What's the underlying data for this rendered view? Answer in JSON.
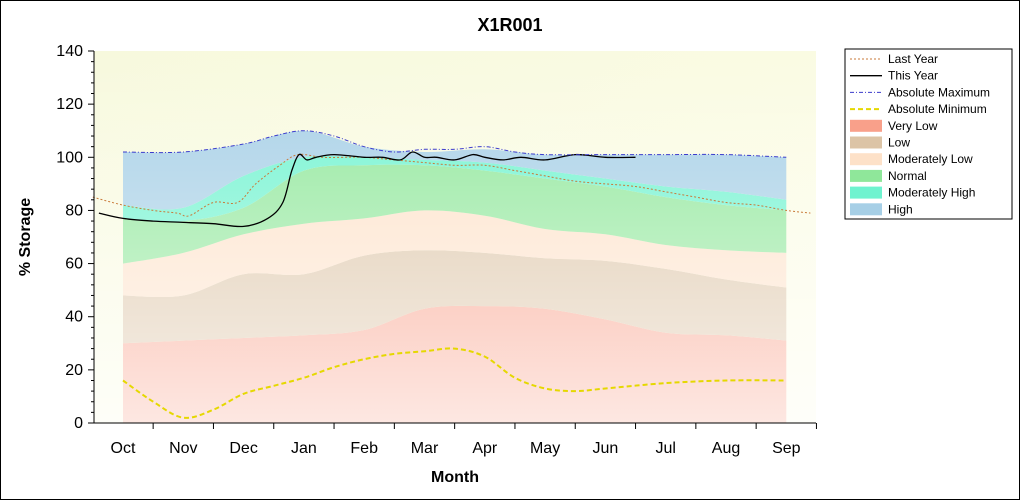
{
  "chart_data": {
    "type": "area",
    "title": "X1R001",
    "xlabel": "Month",
    "ylabel": "% Storage",
    "ylim": [
      0,
      140
    ],
    "yticks": [
      0,
      20,
      40,
      60,
      80,
      100,
      120,
      140
    ],
    "categories": [
      "Oct",
      "Nov",
      "Dec",
      "Jan",
      "Feb",
      "Mar",
      "Apr",
      "May",
      "Jun",
      "Jul",
      "Aug",
      "Sep"
    ],
    "grid": false,
    "legend_position": "right",
    "bands": [
      {
        "name": "Very Low",
        "color": "#f9a08a",
        "lower": [
          0,
          0,
          0,
          0,
          0,
          0,
          0,
          0,
          0,
          0,
          0,
          0
        ],
        "upper": [
          30,
          31,
          32,
          33,
          35,
          43,
          44,
          43,
          39,
          34,
          33,
          31
        ]
      },
      {
        "name": "Low",
        "color": "#dcc4a6",
        "lower": [
          30,
          31,
          32,
          33,
          35,
          43,
          44,
          43,
          39,
          34,
          33,
          31
        ],
        "upper": [
          48,
          48,
          56,
          56,
          63,
          65,
          64,
          62,
          61,
          58,
          54,
          51
        ]
      },
      {
        "name": "Moderately Low",
        "color": "#fde1c8",
        "lower": [
          48,
          48,
          56,
          56,
          63,
          65,
          64,
          62,
          61,
          58,
          54,
          51
        ],
        "upper": [
          60,
          64,
          71,
          75,
          77,
          80,
          78,
          73,
          71,
          67,
          65,
          64
        ]
      },
      {
        "name": "Normal",
        "color": "#8fe79a",
        "lower": [
          60,
          64,
          71,
          75,
          77,
          80,
          78,
          73,
          71,
          67,
          65,
          64
        ],
        "upper": [
          77,
          76,
          81,
          95,
          97,
          97,
          95,
          92,
          89,
          85,
          82,
          80
        ]
      },
      {
        "name": "Moderately High",
        "color": "#6ff3cf",
        "lower": [
          77,
          76,
          81,
          95,
          97,
          97,
          95,
          92,
          89,
          85,
          82,
          80
        ],
        "upper": [
          82,
          81,
          93,
          100,
          100,
          99,
          98,
          95,
          92,
          89,
          87,
          84
        ]
      },
      {
        "name": "High",
        "color": "#a6cfe6",
        "lower": [
          82,
          81,
          93,
          100,
          100,
          99,
          98,
          95,
          92,
          89,
          87,
          84
        ],
        "upper": [
          102,
          102,
          105,
          110,
          104,
          102,
          103,
          101,
          101,
          101,
          101,
          100
        ]
      }
    ],
    "series": [
      {
        "name": "Last Year",
        "color": "#c97a3a",
        "style": "dotted",
        "x": [
          -0.5,
          0,
          0.5,
          0.9,
          1.1,
          1.5,
          1.9,
          2.2,
          2.6,
          2.9,
          3.3,
          3.7,
          4,
          4.5,
          5,
          5.5,
          6,
          6.5,
          7,
          7.5,
          8,
          8.5,
          9,
          9.5,
          10,
          10.5,
          11,
          11.4
        ],
        "values": [
          85,
          82,
          80,
          79,
          78,
          83,
          83,
          90,
          97,
          101,
          100,
          100,
          100,
          99,
          98,
          97,
          97,
          95,
          93,
          91,
          90,
          89,
          87,
          85,
          83,
          82,
          80,
          79
        ]
      },
      {
        "name": "This Year",
        "color": "#000000",
        "style": "solid",
        "x": [
          -0.4,
          0,
          0.5,
          1,
          1.5,
          2,
          2.4,
          2.65,
          2.8,
          2.92,
          3.05,
          3.2,
          3.5,
          4,
          4.3,
          4.6,
          4.8,
          5,
          5.2,
          5.5,
          5.8,
          6,
          6.3,
          6.6,
          7,
          7.5,
          8,
          8.5
        ],
        "values": [
          79,
          77,
          76,
          75.5,
          75,
          74,
          77,
          83,
          95,
          101,
          99,
          100,
          101,
          100,
          100,
          99,
          102,
          100,
          100,
          99,
          101,
          100,
          99,
          100,
          99,
          101,
          100,
          100
        ]
      },
      {
        "name": "Absolute Maximum",
        "color": "#3c3ccc",
        "style": "dashdot",
        "x": [
          0,
          1,
          2,
          2.5,
          3,
          3.5,
          4,
          4.5,
          5,
          5.5,
          6,
          6.5,
          7,
          8,
          9,
          10,
          11
        ],
        "values": [
          102,
          102,
          105,
          108,
          110,
          108,
          104,
          102,
          103,
          103,
          104,
          102,
          101,
          101,
          101,
          101,
          100
        ]
      },
      {
        "name": "Absolute Minimum",
        "color": "#e5d800",
        "style": "dashed",
        "x": [
          0,
          0.5,
          1,
          1.5,
          2,
          2.5,
          3,
          3.5,
          4,
          4.5,
          5,
          5.5,
          6,
          6.5,
          7,
          7.5,
          8,
          9,
          10,
          11
        ],
        "values": [
          16,
          8,
          2,
          5,
          11,
          14,
          17,
          21,
          24,
          26,
          27,
          28,
          25,
          17,
          13,
          12,
          13,
          15,
          16,
          16
        ]
      }
    ],
    "legend": [
      "Last Year",
      "This Year",
      "Absolute Maximum",
      "Absolute Minimum",
      "Very Low",
      "Low",
      "Moderately Low",
      "Normal",
      "Moderately High",
      "High"
    ]
  }
}
